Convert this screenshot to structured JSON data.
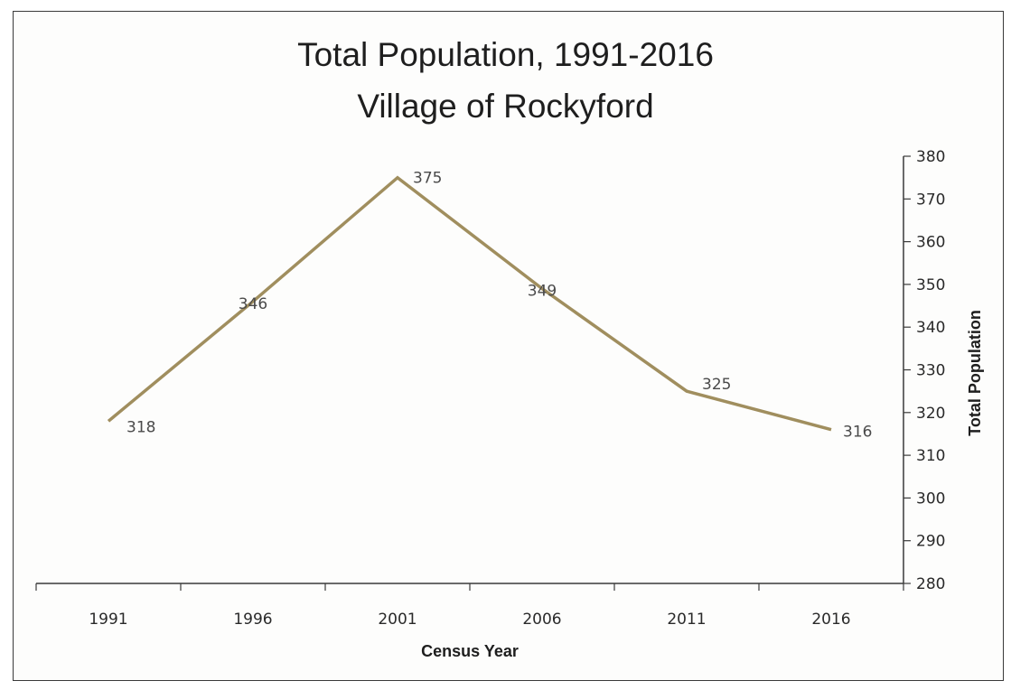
{
  "chart_data": {
    "type": "line",
    "title": "Total Population, 1991-2016",
    "subtitle": "Village of Rockyford",
    "xlabel": "Census Year",
    "ylabel": "Total Population",
    "categories": [
      "1991",
      "1996",
      "2001",
      "2006",
      "2011",
      "2016"
    ],
    "series": [
      {
        "values": [
          318,
          346,
          375,
          349,
          325,
          316
        ]
      }
    ],
    "ylim": [
      280,
      380
    ],
    "yticks": [
      280,
      290,
      300,
      310,
      320,
      330,
      340,
      350,
      360,
      370,
      380
    ],
    "y_axis_side": "right",
    "grid": false,
    "legend": "none",
    "line_color": "#a08e5e"
  }
}
